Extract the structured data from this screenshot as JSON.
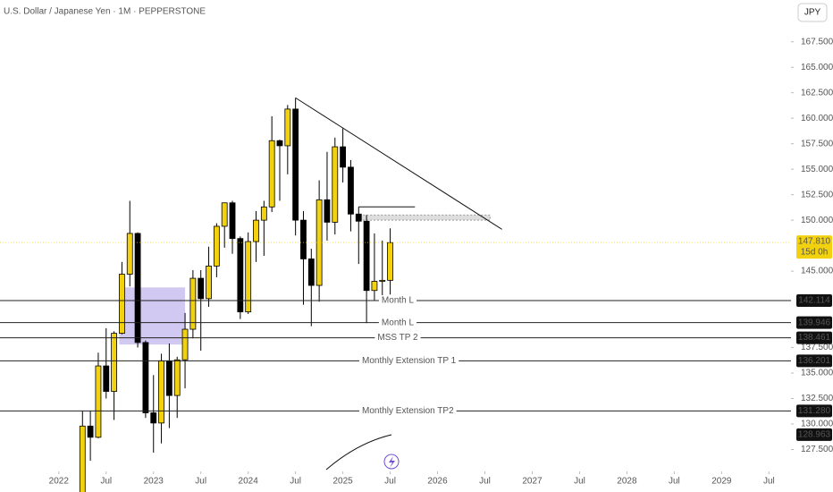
{
  "chart_data": {
    "type": "candlestick",
    "title": "U.S. Dollar / Japanese Yen · 1M · PEPPERSTONE",
    "currency_button": "JPY",
    "up_color": "#f2d20f",
    "down_color": "#000000",
    "ylim": [
      125.35,
      171.6
    ],
    "yticks": [
      {
        "value": 127.5,
        "label": "127.500"
      },
      {
        "value": 130,
        "label": "130.000"
      },
      {
        "value": 132.5,
        "label": "132.500"
      },
      {
        "value": 135,
        "label": "135.000"
      },
      {
        "value": 137.5,
        "label": "137.500"
      },
      {
        "value": 145,
        "label": "145.000"
      },
      {
        "value": 150,
        "label": "150.000"
      },
      {
        "value": 152.5,
        "label": "152.500"
      },
      {
        "value": 155,
        "label": "155.000"
      },
      {
        "value": 157.5,
        "label": "157.500"
      },
      {
        "value": 160,
        "label": "160.000"
      },
      {
        "value": 162.5,
        "label": "162.500"
      },
      {
        "value": 165,
        "label": "165.000"
      },
      {
        "value": 167.5,
        "label": "167.500"
      }
    ],
    "xlim": [
      "2021-06",
      "2029-09"
    ],
    "xticks": [
      {
        "value": "2022-01",
        "label": "2022"
      },
      {
        "value": "2022-07",
        "label": "Jul"
      },
      {
        "value": "2023-01",
        "label": "2023"
      },
      {
        "value": "2023-07",
        "label": "Jul"
      },
      {
        "value": "2024-01",
        "label": "2024"
      },
      {
        "value": "2024-07",
        "label": "Jul"
      },
      {
        "value": "2025-01",
        "label": "2025"
      },
      {
        "value": "2025-07",
        "label": "Jul"
      },
      {
        "value": "2026-01",
        "label": "2026"
      },
      {
        "value": "2026-07",
        "label": "Jul"
      },
      {
        "value": "2027-01",
        "label": "2027"
      },
      {
        "value": "2027-07",
        "label": "Jul"
      },
      {
        "value": "2028-01",
        "label": "2028"
      },
      {
        "value": "2028-07",
        "label": "Jul"
      },
      {
        "value": "2029-01",
        "label": "2029"
      },
      {
        "value": "2029-07",
        "label": "Jul"
      }
    ],
    "x": [
      "2022-04",
      "2022-05",
      "2022-06",
      "2022-07",
      "2022-08",
      "2022-09",
      "2022-10",
      "2022-11",
      "2022-12",
      "2023-01",
      "2023-02",
      "2023-03",
      "2023-04",
      "2023-05",
      "2023-06",
      "2023-07",
      "2023-08",
      "2023-09",
      "2023-10",
      "2023-11",
      "2023-12",
      "2024-01",
      "2024-02",
      "2024-03",
      "2024-04",
      "2024-05",
      "2024-06",
      "2024-07",
      "2024-08",
      "2024-09",
      "2024-10",
      "2024-11",
      "2024-12",
      "2025-01",
      "2025-02",
      "2025-03",
      "2025-04",
      "2025-05",
      "2025-06",
      "2025-07"
    ],
    "open": [
      121.7,
      129.8,
      128.7,
      135.7,
      133.2,
      138.9,
      144.7,
      148.7,
      138.0,
      131.1,
      130.1,
      136.2,
      132.8,
      136.3,
      139.3,
      144.3,
      142.3,
      145.5,
      149.4,
      151.7,
      148.2,
      141.0,
      147.9,
      150.0,
      151.3,
      157.8,
      157.3,
      160.9,
      150.0,
      146.2,
      143.6,
      152.0,
      149.8,
      157.2,
      155.2,
      150.6,
      149.9,
      143.1,
      144.0,
      144.1
    ],
    "high": [
      131.3,
      131.3,
      137.0,
      139.4,
      139.1,
      145.9,
      151.9,
      148.8,
      138.2,
      134.8,
      136.9,
      137.9,
      136.6,
      140.9,
      145.1,
      145.1,
      147.4,
      149.7,
      151.7,
      151.9,
      148.4,
      148.8,
      150.9,
      151.9,
      160.2,
      157.9,
      161.3,
      162.0,
      150.9,
      147.2,
      153.9,
      156.7,
      158.1,
      159.0,
      155.9,
      151.3,
      150.5,
      148.7,
      148.0,
      149.2
    ],
    "low": [
      121.3,
      126.4,
      128.6,
      132.5,
      130.4,
      138.8,
      143.5,
      137.5,
      130.6,
      127.2,
      128.1,
      129.6,
      130.6,
      133.5,
      138.4,
      137.2,
      141.5,
      144.4,
      147.3,
      146.7,
      140.3,
      140.8,
      145.9,
      146.5,
      150.8,
      151.9,
      154.5,
      148.5,
      141.7,
      139.6,
      142.0,
      148.0,
      148.6,
      153.7,
      148.9,
      145.7,
      139.9,
      142.1,
      142.1,
      142.7
    ],
    "close": [
      129.8,
      128.7,
      135.7,
      133.2,
      138.9,
      144.7,
      148.7,
      138.0,
      131.1,
      130.1,
      136.2,
      132.8,
      136.3,
      139.3,
      144.3,
      142.3,
      145.5,
      149.4,
      151.7,
      148.2,
      141.0,
      147.9,
      150.0,
      151.3,
      157.8,
      157.3,
      160.9,
      150.0,
      146.2,
      143.6,
      152.0,
      149.8,
      157.2,
      155.2,
      150.6,
      149.9,
      143.1,
      144.0,
      144.1,
      147.8
    ],
    "last_price": {
      "value": 147.81,
      "label": "147.810",
      "countdown": "15d 0h"
    },
    "levels": [
      {
        "name": "Month L",
        "value": 142.114,
        "label": "142.114"
      },
      {
        "name": "Month L",
        "value": 139.946,
        "label": "139.946"
      },
      {
        "name": "MSS TP 2",
        "value": 138.461,
        "label": "138.461"
      },
      {
        "name": "Monthly Extension TP 1",
        "value": 136.201,
        "label": "136.201"
      },
      {
        "name": "Monthly Extension TP2",
        "value": 131.28,
        "label": "131.280"
      }
    ],
    "alert_price": {
      "value": 128.963,
      "label": "128.963"
    }
  }
}
